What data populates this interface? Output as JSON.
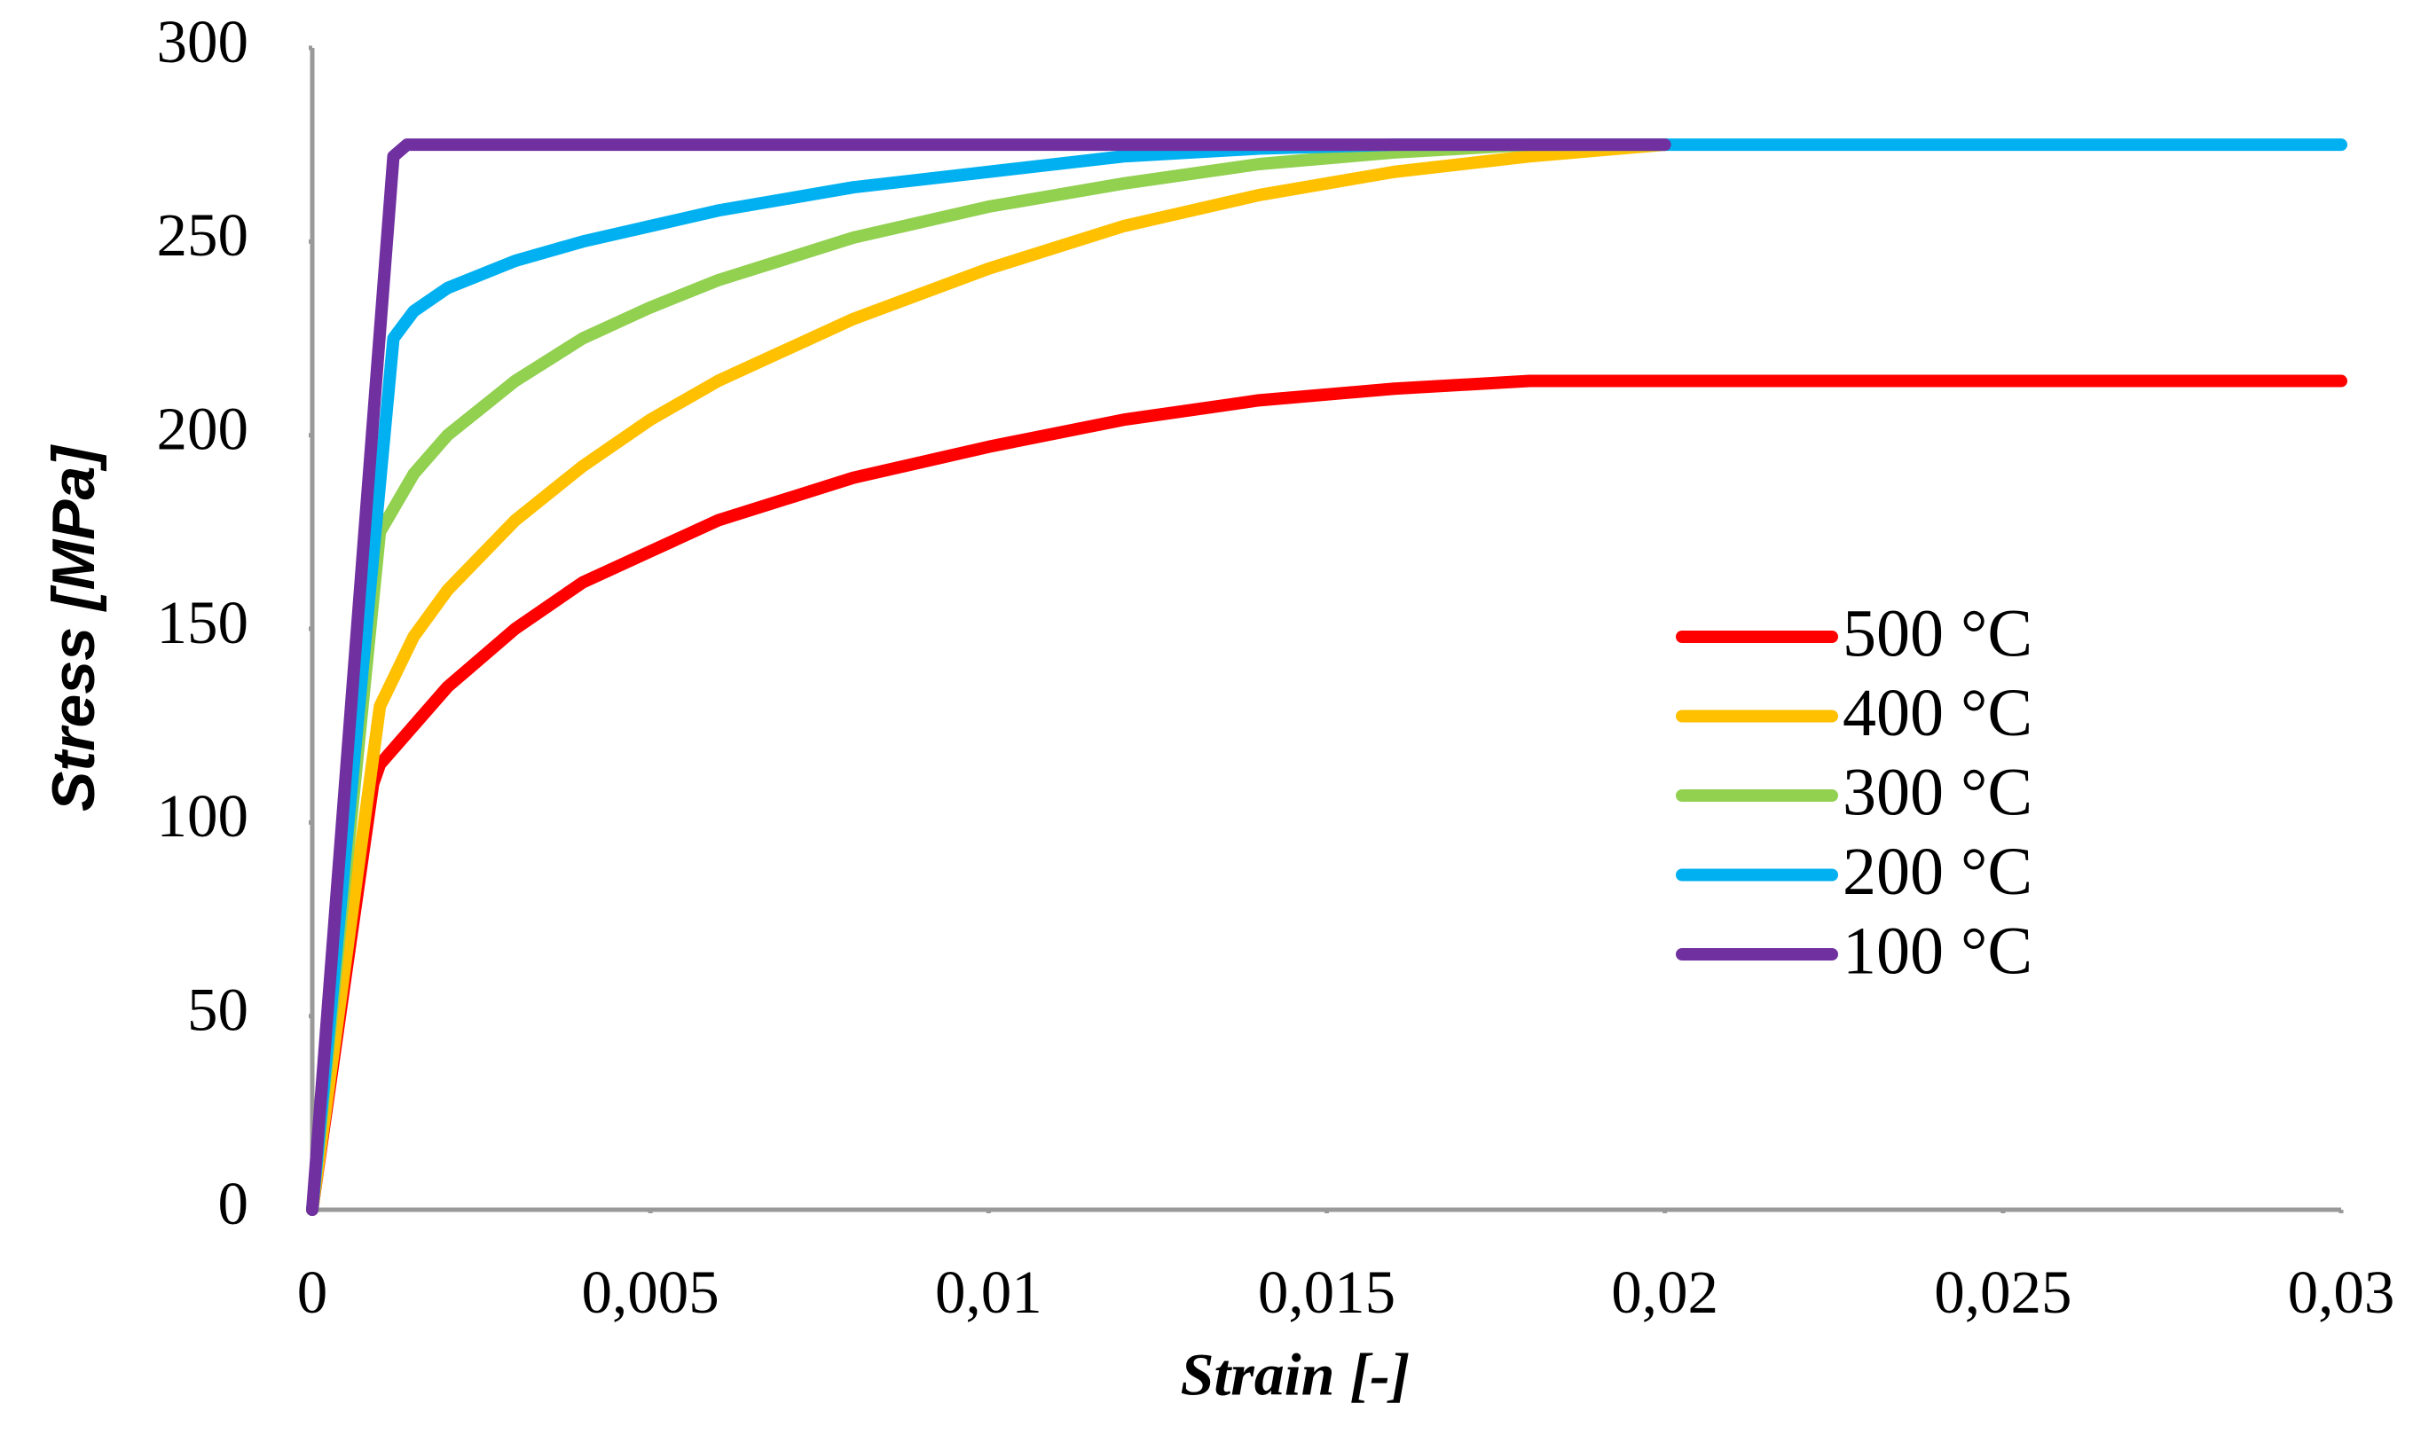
{
  "chart_data": {
    "type": "line",
    "xlabel": "Strain [-]",
    "ylabel": "Stress [MPa]",
    "xlim": [
      0,
      0.03
    ],
    "ylim": [
      0,
      300
    ],
    "xticks": [
      0,
      {
        "value": 0.005,
        "label": "0,005"
      },
      {
        "value": 0.01,
        "label": "0,01"
      },
      {
        "value": 0.015,
        "label": "0,015"
      },
      {
        "value": 0.02,
        "label": "0,02"
      },
      {
        "value": 0.025,
        "label": "0,025"
      },
      {
        "value": 0.03,
        "label": "0,03"
      }
    ],
    "yticks": [
      0,
      50,
      100,
      150,
      200,
      250,
      300
    ],
    "grid": false,
    "legend": "right",
    "series": [
      {
        "name": "500 °C",
        "color": "#ff0000",
        "x": [
          0,
          0.0009,
          0.001,
          0.002,
          0.003,
          0.004,
          0.005,
          0.006,
          0.008,
          0.01,
          0.012,
          0.014,
          0.016,
          0.018,
          0.02,
          0.025,
          0.03
        ],
        "values": [
          0,
          110,
          115,
          135,
          150,
          162,
          170,
          178,
          189,
          197,
          204,
          209,
          212,
          214,
          214,
          214,
          214
        ]
      },
      {
        "name": "400 °C",
        "color": "#ffc000",
        "x": [
          0,
          0.001,
          0.0015,
          0.002,
          0.003,
          0.004,
          0.005,
          0.006,
          0.008,
          0.01,
          0.012,
          0.014,
          0.016,
          0.018,
          0.02
        ],
        "values": [
          0,
          130,
          148,
          160,
          178,
          192,
          204,
          214,
          230,
          243,
          254,
          262,
          268,
          272,
          275
        ]
      },
      {
        "name": "300 °C",
        "color": "#92d050",
        "x": [
          0,
          0.001,
          0.0015,
          0.002,
          0.003,
          0.004,
          0.005,
          0.006,
          0.008,
          0.01,
          0.012,
          0.014,
          0.016,
          0.018,
          0.02
        ],
        "values": [
          0,
          175,
          190,
          200,
          214,
          225,
          233,
          240,
          251,
          259,
          265,
          270,
          273,
          275,
          275
        ]
      },
      {
        "name": "200 °C",
        "color": "#00b0f0",
        "x": [
          0,
          0.0012,
          0.0015,
          0.002,
          0.003,
          0.004,
          0.005,
          0.006,
          0.008,
          0.01,
          0.012,
          0.014,
          0.016,
          0.02,
          0.03
        ],
        "values": [
          0,
          225,
          232,
          238,
          245,
          250,
          254,
          258,
          264,
          268,
          272,
          274,
          275,
          275,
          275
        ]
      },
      {
        "name": "100 °C",
        "color": "#7030a0",
        "x": [
          0,
          0.0012,
          0.0014,
          0.02
        ],
        "values": [
          0,
          272,
          275,
          275
        ]
      }
    ]
  }
}
